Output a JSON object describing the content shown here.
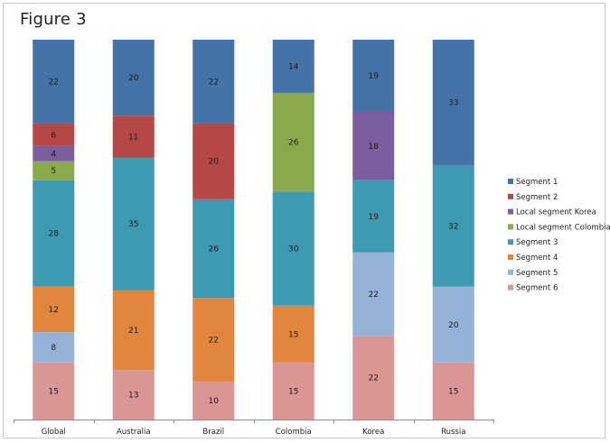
{
  "figure_title": "Figure 3",
  "chart_data": {
    "type": "bar",
    "stacked": true,
    "normalized": true,
    "title": "",
    "xlabel": "",
    "ylabel": "",
    "ylim": [
      0,
      100
    ],
    "grid": false,
    "legend_position": "right",
    "categories": [
      "Global",
      "Australia",
      "Brazil",
      "Colombia",
      "Korea",
      "Russia"
    ],
    "series": [
      {
        "name": "Segment 6",
        "color": "#d99694",
        "values": [
          15,
          13,
          10,
          15,
          22,
          15
        ]
      },
      {
        "name": "Segment 5",
        "color": "#95b3d7",
        "values": [
          8,
          null,
          null,
          null,
          22,
          20
        ]
      },
      {
        "name": "Segment 4",
        "color": "#e2863d",
        "values": [
          12,
          21,
          22,
          15,
          null,
          null
        ]
      },
      {
        "name": "Segment 3",
        "color": "#3e9ab0",
        "values": [
          28,
          35,
          26,
          30,
          19,
          32
        ]
      },
      {
        "name": "Local segment Colombia",
        "color": "#8aa94a",
        "values": [
          5,
          null,
          null,
          26,
          null,
          null
        ]
      },
      {
        "name": "Local segment Korea",
        "color": "#7a5e9d",
        "values": [
          4,
          null,
          null,
          null,
          18,
          null
        ]
      },
      {
        "name": "Segment 2",
        "color": "#b54746",
        "values": [
          6,
          11,
          20,
          null,
          null,
          null
        ]
      },
      {
        "name": "Segment 1",
        "color": "#4572a7",
        "values": [
          22,
          20,
          22,
          14,
          19,
          33
        ]
      }
    ],
    "legend_order": [
      "Segment 1",
      "Segment 2",
      "Local segment Korea",
      "Local segment Colombia",
      "Segment 3",
      "Segment 4",
      "Segment 5",
      "Segment 6"
    ]
  }
}
